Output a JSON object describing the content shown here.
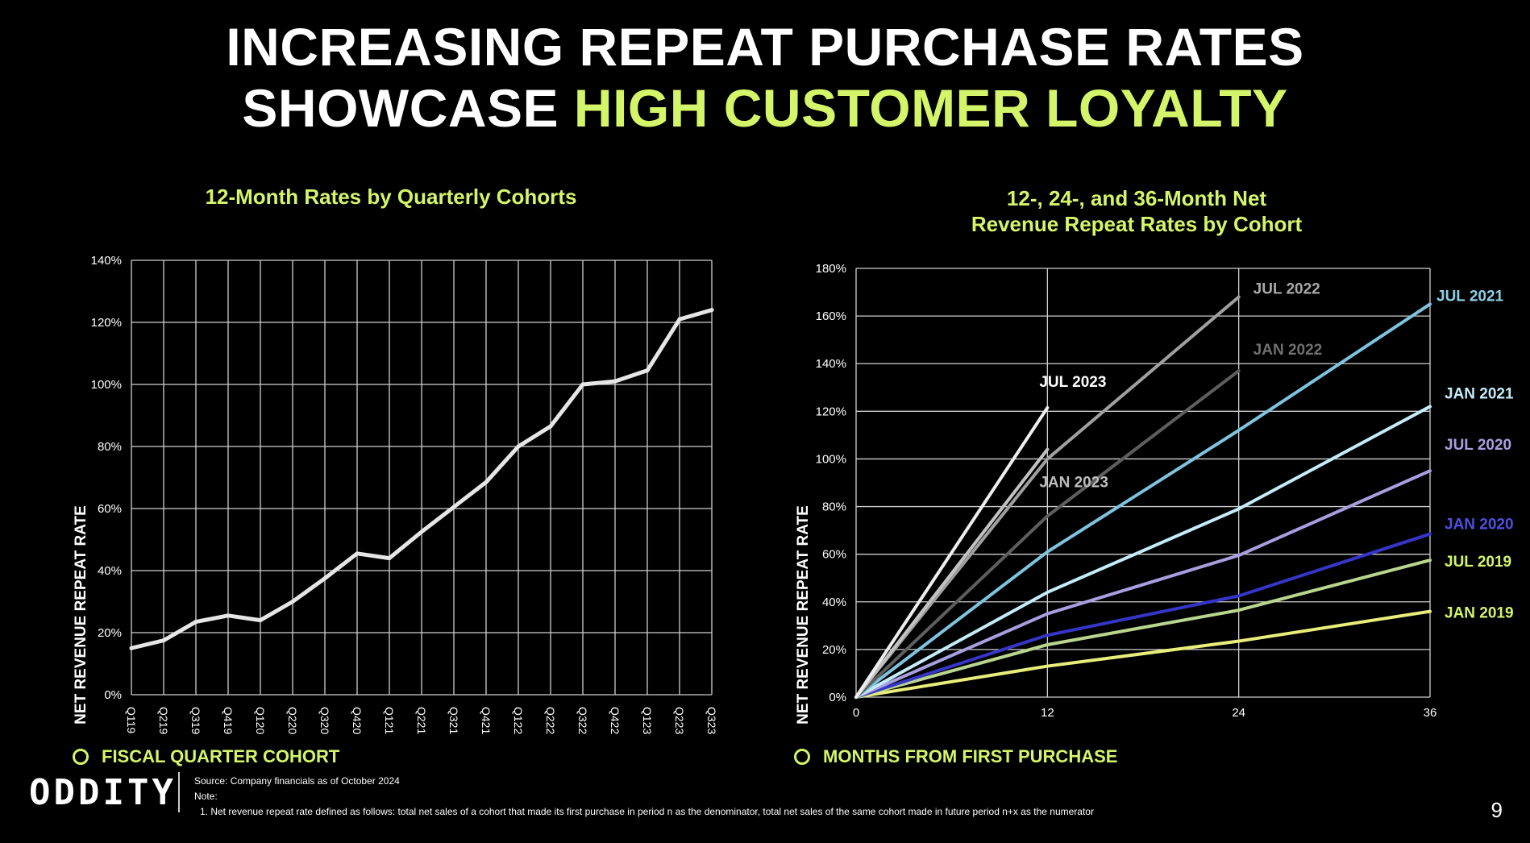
{
  "title": {
    "line1": "INCREASING REPEAT PURCHASE RATES",
    "line2_white": "SHOWCASE",
    "line2_accent": "HIGH CUSTOMER LOYALTY"
  },
  "colors": {
    "accent": "#d4f56a",
    "background": "#000000"
  },
  "left_axis_legend": "FISCAL QUARTER COHORT",
  "right_axis_legend": "MONTHS FROM FIRST PURCHASE",
  "footer": {
    "source": "Source:  Company  financials  as of October 2024",
    "note": "Note:",
    "note1": "1. Net revenue  repeat  rate defined  as follows:  total net sales  of a cohort that made its first purchase  in period  n as the denominator,   total net sales  of the same  cohort  made  in future period  n+x as the numerator"
  },
  "logo_text": "ODDITY",
  "page_number": "9",
  "chart_data": [
    {
      "type": "line",
      "title": "12-Month Rates by Quarterly Cohorts",
      "xlabel": "",
      "ylabel": "NET REVENUE REPEAT RATE",
      "categories": [
        "Q119",
        "Q219",
        "Q319",
        "Q419",
        "Q120",
        "Q220",
        "Q320",
        "Q420",
        "Q121",
        "Q221",
        "Q321",
        "Q421",
        "Q122",
        "Q222",
        "Q322",
        "Q422",
        "Q123",
        "Q223",
        "Q323"
      ],
      "series": [
        {
          "name": "12-Month Net Revenue Repeat Rate",
          "color": "#e6e6e6",
          "values": [
            15,
            17.5,
            23.5,
            25.5,
            24,
            30,
            37.5,
            45.5,
            44,
            52.5,
            60.5,
            68.5,
            80,
            86.5,
            100,
            101,
            104.5,
            121,
            124
          ]
        }
      ],
      "ylim": [
        0,
        140
      ],
      "yticks": [
        0,
        20,
        40,
        60,
        80,
        100,
        120,
        140
      ],
      "ytick_labels": [
        "0%",
        "20%",
        "40%",
        "60%",
        "80%",
        "100%",
        "120%",
        "140%"
      ],
      "grid": true
    },
    {
      "type": "line",
      "title_line1": "12-, 24-, and 36-Month Net",
      "title_line2": "Revenue Repeat Rates by Cohort",
      "xlabel": "",
      "ylabel": "NET REVENUE REPEAT RATE",
      "xlim": [
        0,
        36
      ],
      "xticks": [
        0,
        12,
        24,
        36
      ],
      "xtick_labels": [
        "0",
        "12",
        "24",
        "36"
      ],
      "ylim": [
        0,
        180
      ],
      "yticks": [
        0,
        20,
        40,
        60,
        80,
        100,
        120,
        140,
        160,
        180
      ],
      "ytick_labels": [
        "0%",
        "20%",
        "40%",
        "60%",
        "80%",
        "100%",
        "120%",
        "140%",
        "160%",
        "180%"
      ],
      "grid": true,
      "series": [
        {
          "name": "JAN 2019",
          "color": "#e8ee7a",
          "x": [
            0,
            12,
            24,
            36
          ],
          "values": [
            0,
            13,
            23.5,
            36
          ],
          "label_color": "#d4f56a"
        },
        {
          "name": "JUL 2019",
          "color": "#b9d68f",
          "x": [
            0,
            12,
            24,
            36
          ],
          "values": [
            0,
            22,
            36.5,
            57.5
          ],
          "label_color": "#d4f56a"
        },
        {
          "name": "JAN 2020",
          "color": "#3535c8",
          "x": [
            0,
            12,
            24,
            36
          ],
          "values": [
            0,
            26,
            42.5,
            68.5
          ],
          "label_color": "#4f4fe0"
        },
        {
          "name": "JUL 2020",
          "color": "#a89ee0",
          "x": [
            0,
            12,
            24,
            36
          ],
          "values": [
            0,
            35,
            59.5,
            95
          ],
          "label_color": "#a89ee0"
        },
        {
          "name": "JAN 2021",
          "color": "#c4ecfa",
          "x": [
            0,
            12,
            24,
            36
          ],
          "values": [
            0,
            44,
            79,
            122
          ],
          "label_color": "#c4ecfa"
        },
        {
          "name": "JUL 2021",
          "color": "#7ec3e0",
          "x": [
            0,
            12,
            24,
            36
          ],
          "values": [
            0,
            61,
            112,
            165
          ],
          "label_color": "#8ccfe6"
        },
        {
          "name": "JAN 2022",
          "color": "#5e5e5e",
          "x": [
            0,
            12,
            24
          ],
          "values": [
            0,
            76,
            137
          ],
          "label_color": "#707070"
        },
        {
          "name": "JUL 2022",
          "color": "#a0a0a0",
          "x": [
            0,
            12,
            24
          ],
          "values": [
            0,
            100,
            168
          ],
          "label_color": "#a8a8a8"
        },
        {
          "name": "JAN 2023",
          "color": "#c2c2c2",
          "x": [
            0,
            12
          ],
          "values": [
            0,
            104
          ],
          "label_color": "#bdbdbd"
        },
        {
          "name": "JUL 2023",
          "color": "#eeeeee",
          "x": [
            0,
            12
          ],
          "values": [
            0,
            121.5
          ],
          "label_color": "#ffffff"
        }
      ]
    }
  ]
}
